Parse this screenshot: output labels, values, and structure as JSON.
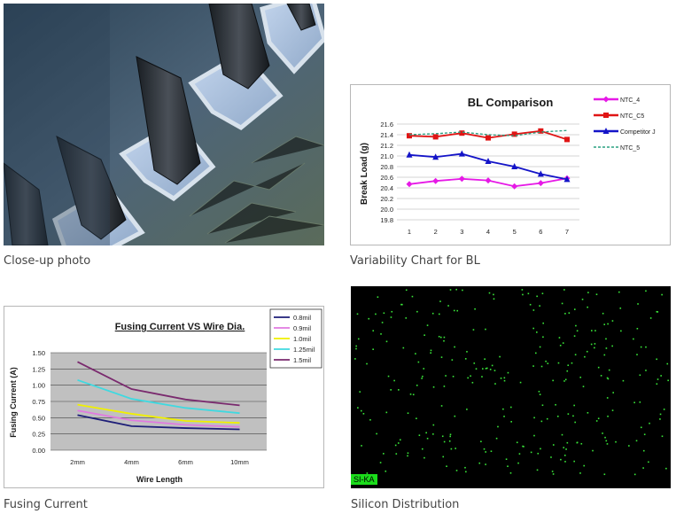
{
  "captions": {
    "photo": "Close-up photo",
    "bl": "Variability Chart for BL",
    "fusing": "Fusing Current",
    "silicon": "Silicon Distribution"
  },
  "silicon": {
    "tag": "SI-KA"
  },
  "colors": {
    "si_dot": "#39e639",
    "si_bg": "#000000"
  },
  "chart_data": [
    {
      "type": "line",
      "title": "BL Comparison",
      "ylabel": "Break Load (g)",
      "xlabel": "",
      "x": [
        1,
        2,
        3,
        4,
        5,
        6,
        7
      ],
      "ylim": [
        19.8,
        21.6
      ],
      "yticks": [
        "21.6",
        "21.4",
        "21.2",
        "21.0",
        "20.8",
        "20.6",
        "20.4",
        "20.2",
        "20.0",
        "19.8"
      ],
      "grid": true,
      "legend": "right",
      "series": [
        {
          "name": "NTC_4",
          "color": "#e619e6",
          "marker": "diamond",
          "values": [
            20.47,
            20.53,
            20.57,
            20.54,
            20.43,
            20.49,
            20.58
          ]
        },
        {
          "name": "NTC_C5",
          "color": "#e01414",
          "marker": "square",
          "values": [
            21.38,
            21.36,
            21.43,
            21.34,
            21.41,
            21.47,
            21.31
          ]
        },
        {
          "name": "Competitor J",
          "color": "#1414c8",
          "marker": "triangle",
          "values": [
            21.02,
            20.98,
            21.04,
            20.9,
            20.8,
            20.66,
            20.56
          ]
        },
        {
          "name": "NTC_5",
          "color": "#2aa080",
          "marker": "none",
          "dashed": true,
          "values": [
            21.4,
            21.42,
            21.45,
            21.4,
            21.38,
            21.45,
            21.48
          ]
        }
      ]
    },
    {
      "type": "line",
      "title": "Fusing Current VS Wire Dia.",
      "xlabel": "Wire Length",
      "ylabel": "Fusing Current (A)",
      "categories": [
        "2mm",
        "4mm",
        "6mm",
        "10mm"
      ],
      "ylim": [
        0,
        1.5
      ],
      "yticks": [
        "1.50",
        "1.25",
        "1.00",
        "0.75",
        "0.50",
        "0.25",
        "0.00"
      ],
      "grid": true,
      "legend": "right",
      "series": [
        {
          "name": "0.8mil",
          "color": "#1e1e78",
          "values": [
            0.54,
            0.37,
            0.34,
            0.32
          ]
        },
        {
          "name": "0.9mil",
          "color": "#e07ae0",
          "values": [
            0.61,
            0.46,
            0.39,
            0.36
          ]
        },
        {
          "name": "1.0mil",
          "color": "#f0f000",
          "values": [
            0.7,
            0.56,
            0.45,
            0.42
          ]
        },
        {
          "name": "1.25mil",
          "color": "#3fd9e0",
          "values": [
            1.08,
            0.79,
            0.65,
            0.57
          ]
        },
        {
          "name": "1.5mil",
          "color": "#7a2a6e",
          "values": [
            1.36,
            0.94,
            0.78,
            0.69
          ]
        }
      ]
    }
  ]
}
